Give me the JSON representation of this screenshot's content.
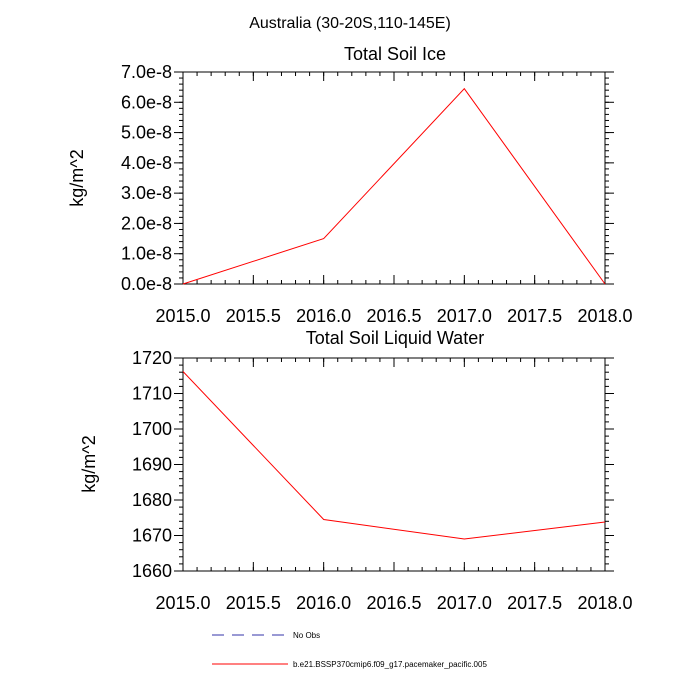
{
  "figure": {
    "title": "Australia (30-20S,110-145E)"
  },
  "legend": {
    "position": "bottom",
    "entries": [
      {
        "label": "No Obs",
        "color": "#3333aa",
        "style": "dashed"
      },
      {
        "label": "b.e21.BSSP370cmip6.f09_g17.pacemaker_pacific.005",
        "color": "#ff0000",
        "style": "solid"
      }
    ]
  },
  "chart_data": [
    {
      "type": "line",
      "title": "Total Soil Ice",
      "xlabel": "",
      "ylabel": "kg/m^2",
      "xlim": [
        2015.0,
        2018.0
      ],
      "ylim": [
        0.0,
        7e-08
      ],
      "x_ticks": [
        2015.0,
        2015.5,
        2016.0,
        2016.5,
        2017.0,
        2017.5,
        2018.0
      ],
      "x_tick_labels": [
        "2015.0",
        "2015.5",
        "2016.0",
        "2016.5",
        "2017.0",
        "2017.5",
        "2018.0"
      ],
      "y_ticks": [
        0,
        1e-08,
        2e-08,
        3e-08,
        4e-08,
        5e-08,
        6e-08,
        7e-08
      ],
      "y_tick_labels": [
        "0.0e-8",
        "1.0e-8",
        "2.0e-8",
        "3.0e-8",
        "4.0e-8",
        "5.0e-8",
        "6.0e-8",
        "7.0e-8"
      ],
      "grid": false,
      "series": [
        {
          "name": "b.e21.BSSP370cmip6.f09_g17.pacemaker_pacific.005",
          "color": "#ff0000",
          "x": [
            2015,
            2016,
            2017,
            2018
          ],
          "y": [
            0.0,
            1.5e-08,
            6.45e-08,
            0.0
          ]
        }
      ]
    },
    {
      "type": "line",
      "title": "Total Soil Liquid Water",
      "xlabel": "",
      "ylabel": "kg/m^2",
      "xlim": [
        2015.0,
        2018.0
      ],
      "ylim": [
        1660,
        1720
      ],
      "x_ticks": [
        2015.0,
        2015.5,
        2016.0,
        2016.5,
        2017.0,
        2017.5,
        2018.0
      ],
      "x_tick_labels": [
        "2015.0",
        "2015.5",
        "2016.0",
        "2016.5",
        "2017.0",
        "2017.5",
        "2018.0"
      ],
      "y_ticks": [
        1660,
        1670,
        1680,
        1690,
        1700,
        1710,
        1720
      ],
      "y_tick_labels": [
        "1660",
        "1670",
        "1680",
        "1690",
        "1700",
        "1710",
        "1720"
      ],
      "grid": false,
      "series": [
        {
          "name": "b.e21.BSSP370cmip6.f09_g17.pacemaker_pacific.005",
          "color": "#ff0000",
          "x": [
            2015,
            2016,
            2017,
            2018
          ],
          "y": [
            1716.2,
            1674.5,
            1669.0,
            1673.8
          ]
        }
      ]
    }
  ]
}
